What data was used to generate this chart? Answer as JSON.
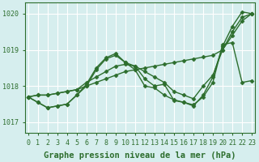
{
  "title": "Graphe pression niveau de la mer (hPa)",
  "xlabel_ticks": [
    0,
    1,
    2,
    3,
    4,
    5,
    6,
    7,
    8,
    9,
    10,
    11,
    12,
    13,
    14,
    15,
    16,
    17,
    18,
    19,
    20,
    21,
    22,
    23
  ],
  "ylim": [
    1016.7,
    1020.3
  ],
  "yticks": [
    1017,
    1018,
    1019,
    1020
  ],
  "xlim": [
    -0.3,
    23.3
  ],
  "bg_color": "#d6eeee",
  "line_color": "#2d6e2d",
  "grid_color": "#ffffff",
  "series": [
    [
      1017.7,
      1017.75,
      1017.75,
      1017.8,
      1017.85,
      1017.9,
      1018.0,
      1018.1,
      1018.2,
      1018.3,
      1018.4,
      1018.45,
      1018.5,
      1018.55,
      1018.6,
      1018.65,
      1018.7,
      1018.75,
      1018.8,
      1018.85,
      1019.0,
      1019.4,
      1019.8,
      1020.0
    ],
    [
      1017.7,
      1017.75,
      1017.75,
      1017.8,
      1017.85,
      1017.9,
      1018.1,
      1018.25,
      1018.4,
      1018.55,
      1018.6,
      1018.55,
      1018.4,
      1018.25,
      1018.1,
      1017.85,
      1017.75,
      1017.65,
      1018.0,
      1018.3,
      1019.0,
      1019.5,
      1019.9,
      1020.0
    ],
    [
      1017.7,
      1017.55,
      1017.4,
      1017.45,
      1017.5,
      1017.75,
      1018.0,
      1018.45,
      1018.75,
      1018.85,
      1018.65,
      1018.55,
      1018.2,
      1018.0,
      1018.05,
      1017.6,
      1017.55,
      1017.45,
      1017.75,
      1018.25,
      1019.1,
      1019.65,
      1020.05,
      1020.0
    ],
    [
      1017.7,
      1017.55,
      1017.4,
      1017.45,
      1017.5,
      1017.75,
      1018.05,
      1018.5,
      1018.78,
      1018.9,
      1018.65,
      1018.45,
      1018.0,
      1017.95,
      1017.75,
      1017.62,
      1017.55,
      1017.48,
      1017.7,
      1018.1,
      1019.15,
      1019.2,
      1018.1,
      1018.15
    ]
  ],
  "marker": "D",
  "markersize": 2.5,
  "linewidth": 1.0,
  "title_fontsize": 7.5,
  "tick_fontsize": 6.0,
  "figsize": [
    3.2,
    2.0
  ],
  "dpi": 100
}
